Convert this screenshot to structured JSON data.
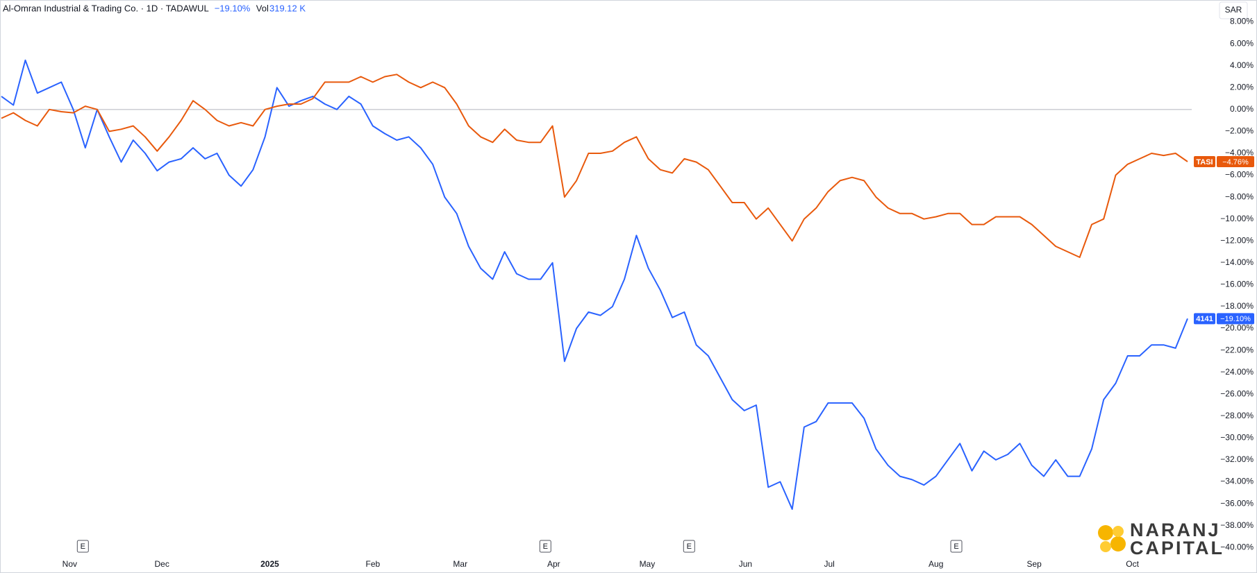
{
  "chart_data": {
    "type": "line",
    "header": {
      "symbol": "Al-Omran Industrial & Trading Co. · 1D · TADAWUL",
      "change": "−19.10%",
      "vol_label": "Vol",
      "vol_value": "319.12 K"
    },
    "currency": "SAR",
    "xlim": [
      0,
      99
    ],
    "xticks": [
      {
        "value": 5.7,
        "label": "Nov"
      },
      {
        "value": 13.4,
        "label": "Dec"
      },
      {
        "value": 22.4,
        "label": "2025"
      },
      {
        "value": 31.0,
        "label": "Feb"
      },
      {
        "value": 38.3,
        "label": "Mar"
      },
      {
        "value": 46.1,
        "label": "Apr"
      },
      {
        "value": 53.9,
        "label": "May"
      },
      {
        "value": 62.1,
        "label": "Jun"
      },
      {
        "value": 69.1,
        "label": "Jul"
      },
      {
        "value": 78.0,
        "label": "Aug"
      },
      {
        "value": 86.2,
        "label": "Sep"
      },
      {
        "value": 94.4,
        "label": "Oct"
      }
    ],
    "ylim": [
      -41,
      10
    ],
    "yticks": [
      {
        "value": 8,
        "label": "8.00%"
      },
      {
        "value": 6,
        "label": "6.00%"
      },
      {
        "value": 4,
        "label": "4.00%"
      },
      {
        "value": 2,
        "label": "2.00%"
      },
      {
        "value": 0,
        "label": "0.00%"
      },
      {
        "value": -2,
        "label": "−2.00%"
      },
      {
        "value": -4,
        "label": "−4.00%"
      },
      {
        "value": -6,
        "label": "−6.00%"
      },
      {
        "value": -8,
        "label": "−8.00%"
      },
      {
        "value": -10,
        "label": "−10.00%"
      },
      {
        "value": -12,
        "label": "−12.00%"
      },
      {
        "value": -14,
        "label": "−14.00%"
      },
      {
        "value": -16,
        "label": "−16.00%"
      },
      {
        "value": -18,
        "label": "−18.00%"
      },
      {
        "value": -20,
        "label": "−20.00%"
      },
      {
        "value": -22,
        "label": "−22.00%"
      },
      {
        "value": -24,
        "label": "−24.00%"
      },
      {
        "value": -26,
        "label": "−26.00%"
      },
      {
        "value": -28,
        "label": "−28.00%"
      },
      {
        "value": -30,
        "label": "−30.00%"
      },
      {
        "value": -32,
        "label": "−32.00%"
      },
      {
        "value": -34,
        "label": "−34.00%"
      },
      {
        "value": -36,
        "label": "−36.00%"
      },
      {
        "value": -38,
        "label": "−38.00%"
      },
      {
        "value": -40,
        "label": "−40.00%"
      }
    ],
    "grid": false,
    "baseline": 0,
    "events": [
      {
        "x": 6.8,
        "label": "E"
      },
      {
        "x": 45.4,
        "label": "E"
      },
      {
        "x": 57.4,
        "label": "E"
      },
      {
        "x": 79.7,
        "label": "E"
      }
    ],
    "series": [
      {
        "name": "4141",
        "color": "#2962ff",
        "last_label": "−19.10%",
        "values": [
          1.2,
          0.4,
          4.5,
          1.5,
          2.0,
          2.5,
          0.0,
          -3.5,
          0.0,
          -2.5,
          -4.8,
          -2.8,
          -4.0,
          -5.6,
          -4.8,
          -4.5,
          -3.5,
          -4.5,
          -4.0,
          -6.0,
          -7.0,
          -5.5,
          -2.5,
          2.0,
          0.3,
          0.8,
          1.2,
          0.5,
          0.0,
          1.2,
          0.5,
          -1.5,
          -2.2,
          -2.8,
          -2.5,
          -3.5,
          -5.0,
          -8.0,
          -9.5,
          -12.5,
          -14.5,
          -15.5,
          -13.0,
          -15.0,
          -15.5,
          -15.5,
          -14.0,
          -23.0,
          -20.0,
          -18.5,
          -18.8,
          -18.0,
          -15.5,
          -11.5,
          -14.5,
          -16.5,
          -19.0,
          -18.5,
          -21.5,
          -22.5,
          -24.5,
          -26.5,
          -27.5,
          -27.0,
          -34.5,
          -34.0,
          -36.5,
          -29.0,
          -28.5,
          -26.8,
          -26.8,
          -26.8,
          -28.2,
          -31.0,
          -32.5,
          -33.5,
          -33.8,
          -34.3,
          -33.5,
          -32.0,
          -30.5,
          -33.0,
          -31.2,
          -32.0,
          -31.5,
          -30.5,
          -32.5,
          -33.5,
          -32.0,
          -33.5,
          -33.5,
          -31.0,
          -26.5,
          -25.0,
          -22.5,
          -22.5,
          -21.5,
          -21.5,
          -21.8,
          -19.1
        ]
      },
      {
        "name": "TASI",
        "color": "#e8590c",
        "last_label": "−4.76%",
        "values": [
          -0.8,
          -0.3,
          -1.0,
          -1.5,
          0.0,
          -0.2,
          -0.3,
          0.3,
          0.0,
          -2.0,
          -1.8,
          -1.5,
          -2.5,
          -3.8,
          -2.5,
          -1.0,
          0.8,
          0.0,
          -1.0,
          -1.5,
          -1.2,
          -1.5,
          0.0,
          0.3,
          0.5,
          0.5,
          1.0,
          2.5,
          2.5,
          2.5,
          3.0,
          2.5,
          3.0,
          3.2,
          2.5,
          2.0,
          2.5,
          2.0,
          0.5,
          -1.5,
          -2.5,
          -3.0,
          -1.8,
          -2.8,
          -3.0,
          -3.0,
          -1.5,
          -8.0,
          -6.5,
          -4.0,
          -4.0,
          -3.8,
          -3.0,
          -2.5,
          -4.5,
          -5.5,
          -5.8,
          -4.5,
          -4.8,
          -5.5,
          -7.0,
          -8.5,
          -8.5,
          -10.0,
          -9.0,
          -10.5,
          -12.0,
          -10.0,
          -9.0,
          -7.5,
          -6.5,
          -6.2,
          -6.5,
          -8.0,
          -9.0,
          -9.5,
          -9.5,
          -10.0,
          -9.8,
          -9.5,
          -9.5,
          -10.5,
          -10.5,
          -9.8,
          -9.8,
          -9.8,
          -10.5,
          -11.5,
          -12.5,
          -13.0,
          -13.5,
          -10.5,
          -10.0,
          -6.0,
          -5.0,
          -4.5,
          -4.0,
          -4.2,
          -4.0,
          -4.76
        ]
      }
    ],
    "logo": {
      "line1": "NARANJ",
      "line2": "CAPITAL"
    }
  }
}
